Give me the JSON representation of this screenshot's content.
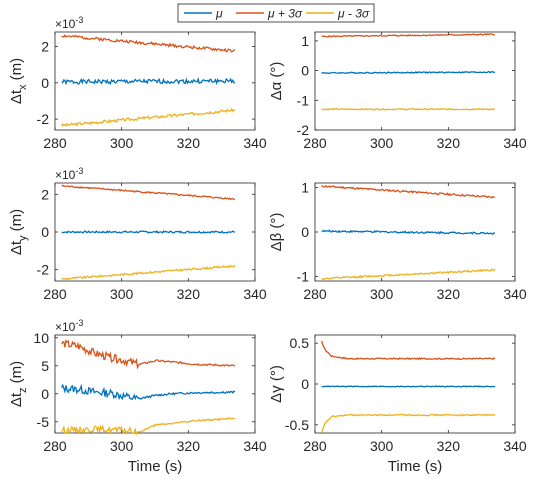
{
  "legend": {
    "entries": [
      {
        "label": "μ",
        "color": "#0072BD"
      },
      {
        "label": "μ + 3σ",
        "color": "#D95319"
      },
      {
        "label": "μ - 3σ",
        "color": "#EDB120"
      }
    ],
    "placement": "top-center"
  },
  "chart_data": [
    {
      "type": "line",
      "id": "tx",
      "ylabel": "Δt_x (m)",
      "ylabel_main": "Δt",
      "ylabel_sub": "x",
      "ylabel_unit": " (m)",
      "exponent_label": "×10^-3",
      "exponent_base": "×10",
      "exponent_power": "-3",
      "xlabel": "",
      "xlim": [
        280,
        340
      ],
      "ylim": [
        -2.6,
        2.8
      ],
      "xticks": [
        280,
        300,
        320,
        340
      ],
      "yticks": [
        -2,
        0,
        2
      ],
      "ytick_labels": [
        "-2",
        "0",
        "2"
      ],
      "scale": 0.001,
      "grid": false,
      "series": [
        {
          "name": "μ",
          "x": [
            282,
            334
          ],
          "start": 0.05,
          "end": 0.1,
          "noise": 0.12,
          "seed": 1
        },
        {
          "name": "μ + 3σ",
          "x": [
            282,
            334
          ],
          "start": 2.6,
          "end": 1.75,
          "noise": 0.08,
          "seed": 2
        },
        {
          "name": "μ - 3σ",
          "x": [
            282,
            334
          ],
          "start": -2.35,
          "end": -1.5,
          "noise": 0.08,
          "seed": 3
        }
      ]
    },
    {
      "type": "line",
      "id": "alpha",
      "ylabel": "Δα (°)",
      "ylabel_main": "Δα",
      "ylabel_sub": "",
      "ylabel_unit": " (°)",
      "exponent_label": "",
      "exponent_base": "",
      "exponent_power": "",
      "xlabel": "",
      "xlim": [
        280,
        340
      ],
      "ylim": [
        -2,
        1.3
      ],
      "xticks": [
        280,
        300,
        320,
        340
      ],
      "yticks": [
        -2,
        -1,
        0,
        1
      ],
      "ytick_labels": [
        "-2",
        "-1",
        "0",
        "1"
      ],
      "scale": 1,
      "grid": false,
      "series": [
        {
          "name": "μ",
          "x": [
            282,
            334
          ],
          "start": -0.08,
          "end": -0.05,
          "noise": 0.02,
          "seed": 4
        },
        {
          "name": "μ + 3σ",
          "x": [
            282,
            334
          ],
          "start": 1.15,
          "end": 1.22,
          "noise": 0.02,
          "seed": 5
        },
        {
          "name": "μ - 3σ",
          "x": [
            282,
            334
          ],
          "start": -1.3,
          "end": -1.3,
          "noise": 0.02,
          "seed": 6
        }
      ]
    },
    {
      "type": "line",
      "id": "ty",
      "ylabel": "Δt_y (m)",
      "ylabel_main": "Δt",
      "ylabel_sub": "y",
      "ylabel_unit": " (m)",
      "exponent_label": "×10^-3",
      "exponent_base": "×10",
      "exponent_power": "-3",
      "xlabel": "",
      "xlim": [
        280,
        340
      ],
      "ylim": [
        -2.6,
        2.6
      ],
      "xticks": [
        280,
        300,
        320,
        340
      ],
      "yticks": [
        -2,
        0,
        2
      ],
      "ytick_labels": [
        "-2",
        "0",
        "2"
      ],
      "scale": 0.001,
      "grid": false,
      "series": [
        {
          "name": "μ",
          "x": [
            282,
            334
          ],
          "start": 0.0,
          "end": 0.0,
          "noise": 0.05,
          "seed": 7
        },
        {
          "name": "μ + 3σ",
          "x": [
            282,
            334
          ],
          "start": 2.45,
          "end": 1.75,
          "noise": 0.04,
          "seed": 8
        },
        {
          "name": "μ - 3σ",
          "x": [
            282,
            334
          ],
          "start": -2.5,
          "end": -1.8,
          "noise": 0.05,
          "seed": 9
        }
      ]
    },
    {
      "type": "line",
      "id": "beta",
      "ylabel": "Δβ (°)",
      "ylabel_main": "Δβ",
      "ylabel_sub": "",
      "ylabel_unit": " (°)",
      "exponent_label": "",
      "exponent_base": "",
      "exponent_power": "",
      "xlabel": "",
      "xlim": [
        280,
        340
      ],
      "ylim": [
        -1.1,
        1.1
      ],
      "xticks": [
        280,
        300,
        320,
        340
      ],
      "yticks": [
        -1,
        0,
        1
      ],
      "ytick_labels": [
        "-1",
        "0",
        "1"
      ],
      "scale": 1,
      "grid": false,
      "series": [
        {
          "name": "μ",
          "x": [
            282,
            334
          ],
          "start": 0.02,
          "end": -0.03,
          "noise": 0.02,
          "seed": 10
        },
        {
          "name": "μ + 3σ",
          "x": [
            282,
            334
          ],
          "start": 1.03,
          "end": 0.78,
          "noise": 0.02,
          "seed": 11
        },
        {
          "name": "μ - 3σ",
          "x": [
            282,
            334
          ],
          "start": -1.05,
          "end": -0.85,
          "noise": 0.02,
          "seed": 12
        }
      ]
    },
    {
      "type": "line",
      "id": "tz",
      "ylabel": "Δt_z (m)",
      "ylabel_main": "Δt",
      "ylabel_sub": "z",
      "ylabel_unit": " (m)",
      "exponent_label": "×10^-3",
      "exponent_base": "×10",
      "exponent_power": "-3",
      "xlabel": "Time (s)",
      "xlim": [
        280,
        340
      ],
      "ylim": [
        -7,
        10.5
      ],
      "xticks": [
        280,
        300,
        320,
        340
      ],
      "yticks": [
        -5,
        0,
        5,
        10
      ],
      "ytick_labels": [
        "-5",
        "0",
        "5",
        "10"
      ],
      "scale": 0.001,
      "grid": false,
      "series": [
        {
          "name": "μ",
          "x": [
            282,
            334
          ],
          "points": [
            [
              282,
              1
            ],
            [
              287,
              0.8
            ],
            [
              292,
              0.3
            ],
            [
              297,
              0.1
            ],
            [
              302,
              -0.6
            ],
            [
              305,
              -0.9
            ],
            [
              310,
              -0.3
            ],
            [
              315,
              0.0
            ],
            [
              322,
              0.2
            ],
            [
              334,
              0.3
            ]
          ],
          "noise": 0.5,
          "noise_decay": true,
          "seed": 13
        },
        {
          "name": "μ + 3σ",
          "x": [
            282,
            334
          ],
          "points": [
            [
              282,
              9
            ],
            [
              287,
              8.5
            ],
            [
              292,
              7.2
            ],
            [
              297,
              6.4
            ],
            [
              302,
              5.8
            ],
            [
              305,
              5.2
            ],
            [
              310,
              5.9
            ],
            [
              315,
              5.7
            ],
            [
              322,
              5.3
            ],
            [
              334,
              5.0
            ]
          ],
          "noise": 0.5,
          "noise_decay": true,
          "seed": 14
        },
        {
          "name": "μ - 3σ",
          "x": [
            282,
            334
          ],
          "points": [
            [
              282,
              -6.5
            ],
            [
              287,
              -6.4
            ],
            [
              292,
              -6.3
            ],
            [
              297,
              -6.4
            ],
            [
              302,
              -6.6
            ],
            [
              305,
              -6.9
            ],
            [
              310,
              -5.6
            ],
            [
              315,
              -5.3
            ],
            [
              322,
              -4.8
            ],
            [
              334,
              -4.4
            ]
          ],
          "noise": 0.4,
          "noise_decay": true,
          "seed": 15
        }
      ]
    },
    {
      "type": "line",
      "id": "gamma",
      "ylabel": "Δγ (°)",
      "ylabel_main": "Δγ",
      "ylabel_sub": "",
      "ylabel_unit": " (°)",
      "exponent_label": "",
      "exponent_base": "",
      "exponent_power": "",
      "xlabel": "Time (s)",
      "xlim": [
        280,
        340
      ],
      "ylim": [
        -0.6,
        0.6
      ],
      "xticks": [
        280,
        300,
        320,
        340
      ],
      "yticks": [
        -0.5,
        0,
        0.5
      ],
      "ytick_labels": [
        "-0.5",
        "0",
        "0.5"
      ],
      "scale": 1,
      "grid": false,
      "series": [
        {
          "name": "μ",
          "x": [
            282,
            334
          ],
          "points": [
            [
              282,
              -0.03
            ],
            [
              290,
              -0.03
            ],
            [
              310,
              -0.03
            ],
            [
              334,
              -0.03
            ]
          ],
          "noise": 0.005,
          "seed": 16
        },
        {
          "name": "μ + 3σ",
          "x": [
            282,
            334
          ],
          "points": [
            [
              282,
              0.52
            ],
            [
              283,
              0.42
            ],
            [
              285,
              0.34
            ],
            [
              290,
              0.31
            ],
            [
              310,
              0.31
            ],
            [
              334,
              0.31
            ]
          ],
          "noise": 0.008,
          "seed": 17
        },
        {
          "name": "μ - 3σ",
          "x": [
            282,
            334
          ],
          "points": [
            [
              282,
              -0.6
            ],
            [
              283,
              -0.48
            ],
            [
              285,
              -0.4
            ],
            [
              290,
              -0.38
            ],
            [
              310,
              -0.38
            ],
            [
              334,
              -0.38
            ]
          ],
          "noise": 0.008,
          "seed": 18
        }
      ]
    }
  ]
}
